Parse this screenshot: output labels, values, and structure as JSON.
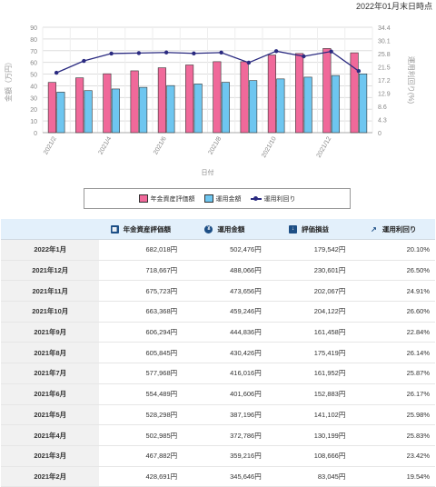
{
  "as_of": "2022年01月末日時点",
  "chart_data": {
    "type": "bar",
    "categories": [
      "2021/2",
      "2021/3",
      "2021/4",
      "2021/5",
      "2021/6",
      "2021/7",
      "2021/8",
      "2021/9",
      "2021/10",
      "2021/11",
      "2021/12",
      "2022/1"
    ],
    "tick_labels": [
      "2021/2",
      "2021/4",
      "2021/6",
      "2021/8",
      "2021/10",
      "2021/12"
    ],
    "xlabel": "日付",
    "ylabel_left": "金額（万円）",
    "ylabel_right": "運用利回り(%)",
    "ylim_left": [
      0,
      90
    ],
    "yticks_left": [
      0,
      10,
      20,
      30,
      40,
      50,
      60,
      70,
      80,
      90
    ],
    "ylim_right": [
      0,
      34.4
    ],
    "yticks_right": [
      0,
      4.3,
      8.6,
      12.9,
      17.2,
      21.5,
      25.8,
      30.1,
      34.4
    ],
    "series": [
      {
        "name": "年金資産評価額",
        "color": "#f0699a",
        "values": [
          42.9,
          46.8,
          50.3,
          52.8,
          55.4,
          57.8,
          60.6,
          60.6,
          66.3,
          67.6,
          71.9,
          68.2
        ]
      },
      {
        "name": "運用金額",
        "color": "#6ec6f0",
        "values": [
          34.6,
          35.9,
          37.3,
          38.7,
          40.2,
          41.6,
          43.0,
          44.5,
          45.9,
          47.4,
          48.8,
          50.2
        ]
      },
      {
        "name": "運用利回り",
        "type": "line",
        "axis": "right",
        "color": "#2a2a80",
        "values": [
          19.54,
          23.42,
          25.83,
          25.98,
          26.17,
          25.87,
          26.14,
          22.84,
          26.6,
          24.91,
          26.5,
          20.1
        ]
      }
    ],
    "legend_position": "bottom",
    "grid": true
  },
  "legend": [
    "年金資産評価額",
    "運用金額",
    "運用利回り"
  ],
  "table": {
    "headers": [
      "",
      "年金資産評価額",
      "運用金額",
      "評価損益",
      "運用利回り"
    ],
    "rows": [
      [
        "2022年1月",
        "682,018円",
        "502,476円",
        "179,542円",
        "20.10%"
      ],
      [
        "2021年12月",
        "718,667円",
        "488,066円",
        "230,601円",
        "26.50%"
      ],
      [
        "2021年11月",
        "675,723円",
        "473,656円",
        "202,067円",
        "24.91%"
      ],
      [
        "2021年10月",
        "663,368円",
        "459,246円",
        "204,122円",
        "26.60%"
      ],
      [
        "2021年9月",
        "606,294円",
        "444,836円",
        "161,458円",
        "22.84%"
      ],
      [
        "2021年8月",
        "605,845円",
        "430,426円",
        "175,419円",
        "26.14%"
      ],
      [
        "2021年7月",
        "577,968円",
        "416,016円",
        "161,952円",
        "25.87%"
      ],
      [
        "2021年6月",
        "554,489円",
        "401,606円",
        "152,883円",
        "26.17%"
      ],
      [
        "2021年5月",
        "528,298円",
        "387,196円",
        "141,102円",
        "25.98%"
      ],
      [
        "2021年4月",
        "502,985円",
        "372,786円",
        "130,199円",
        "25.83%"
      ],
      [
        "2021年3月",
        "467,882円",
        "359,216円",
        "108,666円",
        "23.42%"
      ],
      [
        "2021年2月",
        "428,691円",
        "345,646円",
        "83,045円",
        "19.54%"
      ]
    ]
  }
}
